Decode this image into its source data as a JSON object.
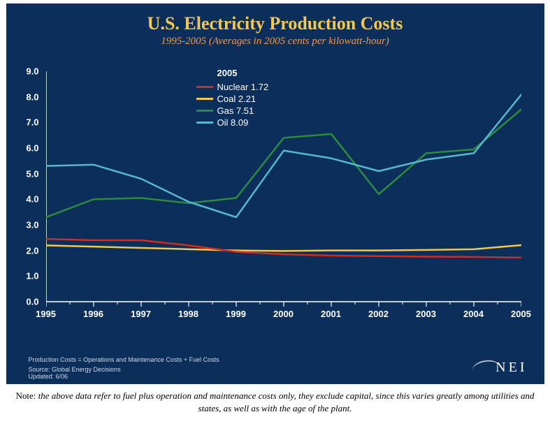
{
  "chart": {
    "type": "line",
    "title": "U.S. Electricity Production Costs",
    "subtitle": "1995-2005 (Averages in 2005 cents per kilowatt-hour)",
    "background_color": "#0b2e5a",
    "title_color": "#f2c94c",
    "subtitle_color": "#f2994a",
    "axis_color": "#ffffff",
    "tick_text_color": "#ffffff",
    "title_fontsize": 26,
    "subtitle_fontsize": 15,
    "tick_fontsize": 13,
    "x": {
      "ticks": [
        "1995",
        "1996",
        "1997",
        "1998",
        "1999",
        "2000",
        "2001",
        "2002",
        "2003",
        "2004",
        "2005"
      ],
      "xlim": [
        1995,
        2005
      ]
    },
    "y": {
      "ticks": [
        "0.0",
        "1.0",
        "2.0",
        "3.0",
        "4.0",
        "5.0",
        "6.0",
        "7.0",
        "8.0",
        "9.0"
      ],
      "ylim": [
        0,
        9
      ],
      "ytick_step": 1.0
    },
    "legend": {
      "year_label": "2005",
      "items": [
        {
          "key": "nuclear",
          "label": "Nuclear 1.72",
          "color": "#d52b1e"
        },
        {
          "key": "coal",
          "label": "Coal 2.21",
          "color": "#f2c94c"
        },
        {
          "key": "gas",
          "label": "Gas 7.51",
          "color": "#2e8b3d"
        },
        {
          "key": "oil",
          "label": "Oil 8.09",
          "color": "#56b8d0"
        }
      ]
    },
    "series": {
      "nuclear": {
        "color": "#d52b1e",
        "line_width": 2.5,
        "values": [
          2.45,
          2.4,
          2.4,
          2.2,
          1.95,
          1.85,
          1.8,
          1.78,
          1.76,
          1.75,
          1.72
        ]
      },
      "coal": {
        "color": "#f2c94c",
        "line_width": 2.5,
        "values": [
          2.2,
          2.15,
          2.1,
          2.05,
          2.0,
          1.98,
          2.0,
          2.0,
          2.02,
          2.05,
          2.21
        ]
      },
      "gas": {
        "color": "#2e8b3d",
        "line_width": 2.5,
        "values": [
          3.3,
          4.0,
          4.05,
          3.85,
          4.05,
          6.4,
          6.55,
          4.2,
          5.8,
          5.95,
          7.51
        ]
      },
      "oil": {
        "color": "#56b8d0",
        "line_width": 2.5,
        "values": [
          5.3,
          5.35,
          4.8,
          3.9,
          3.3,
          5.9,
          5.6,
          5.1,
          5.55,
          5.8,
          8.09
        ]
      }
    },
    "footnote_text": "Production Costs = Operations and Maintenance Costs + Fuel Costs",
    "source_text": "Source: Global Energy Decisions",
    "updated_text": "Updated: 6/06",
    "logo_text": "NEI"
  },
  "note": {
    "label": "Note:",
    "text": "the above data refer to fuel plus operation and maintenance costs only, they exclude capital, since this varies greatly among utilities and states, as well as with the age of the plant."
  }
}
